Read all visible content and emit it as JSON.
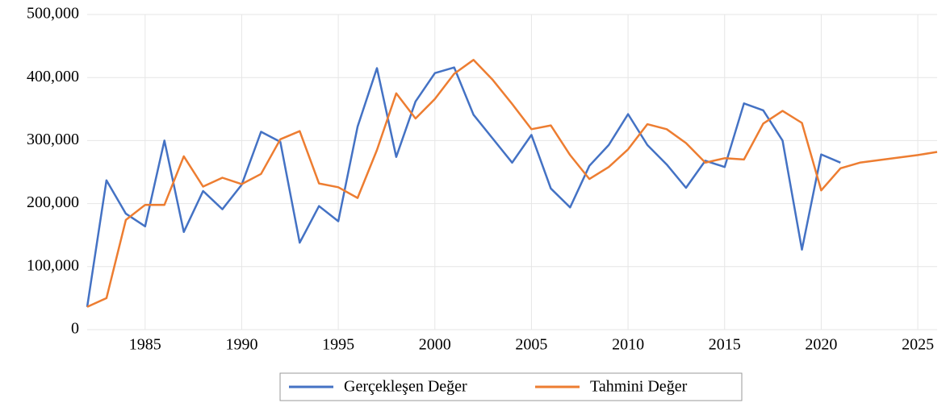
{
  "chart_data": {
    "type": "line",
    "x": [
      1982,
      1983,
      1984,
      1985,
      1986,
      1987,
      1988,
      1989,
      1990,
      1991,
      1992,
      1993,
      1994,
      1995,
      1996,
      1997,
      1998,
      1999,
      2000,
      2001,
      2002,
      2003,
      2004,
      2005,
      2006,
      2007,
      2008,
      2009,
      2010,
      2011,
      2012,
      2013,
      2014,
      2015,
      2016,
      2017,
      2018,
      2019,
      2020,
      2021,
      2022,
      2023,
      2024,
      2025,
      2026
    ],
    "series": [
      {
        "name": "Gerçekleşen Değer",
        "color": "#4472c4",
        "values": [
          36000,
          237000,
          184000,
          164000,
          300000,
          155000,
          220000,
          191000,
          230000,
          314000,
          298000,
          138000,
          196000,
          172000,
          322000,
          415000,
          274000,
          362000,
          407000,
          416000,
          341000,
          303000,
          265000,
          309000,
          224000,
          194000,
          260000,
          293000,
          342000,
          293000,
          262000,
          225000,
          268000,
          258000,
          359000,
          348000,
          300000,
          127000,
          278000,
          265000,
          null,
          null,
          null,
          null,
          null
        ]
      },
      {
        "name": "Tahmini Değer",
        "color": "#ed7d31",
        "values": [
          36000,
          50000,
          174000,
          198000,
          198000,
          275000,
          227000,
          241000,
          231000,
          247000,
          302000,
          315000,
          232000,
          226000,
          209000,
          285000,
          375000,
          335000,
          366000,
          406000,
          428000,
          396000,
          358000,
          318000,
          324000,
          277000,
          239000,
          258000,
          286000,
          326000,
          318000,
          296000,
          265000,
          272000,
          270000,
          327000,
          347000,
          328000,
          221000,
          256000,
          265000,
          269000,
          273000,
          277000,
          282000
        ]
      }
    ],
    "xlim": [
      1982,
      2026
    ],
    "xticks": [
      1985,
      1990,
      1995,
      2000,
      2005,
      2010,
      2015,
      2020,
      2025
    ],
    "ylim": [
      0,
      500000
    ],
    "yticks": [
      0,
      {
        "value": 100000,
        "label": "100,000"
      },
      {
        "value": 200000,
        "label": "200,000"
      },
      {
        "value": 300000,
        "label": "300,000"
      },
      {
        "value": 400000,
        "label": "400,000"
      },
      {
        "value": 500000,
        "label": "500,000"
      }
    ],
    "grid": true,
    "legend": "bottom"
  }
}
